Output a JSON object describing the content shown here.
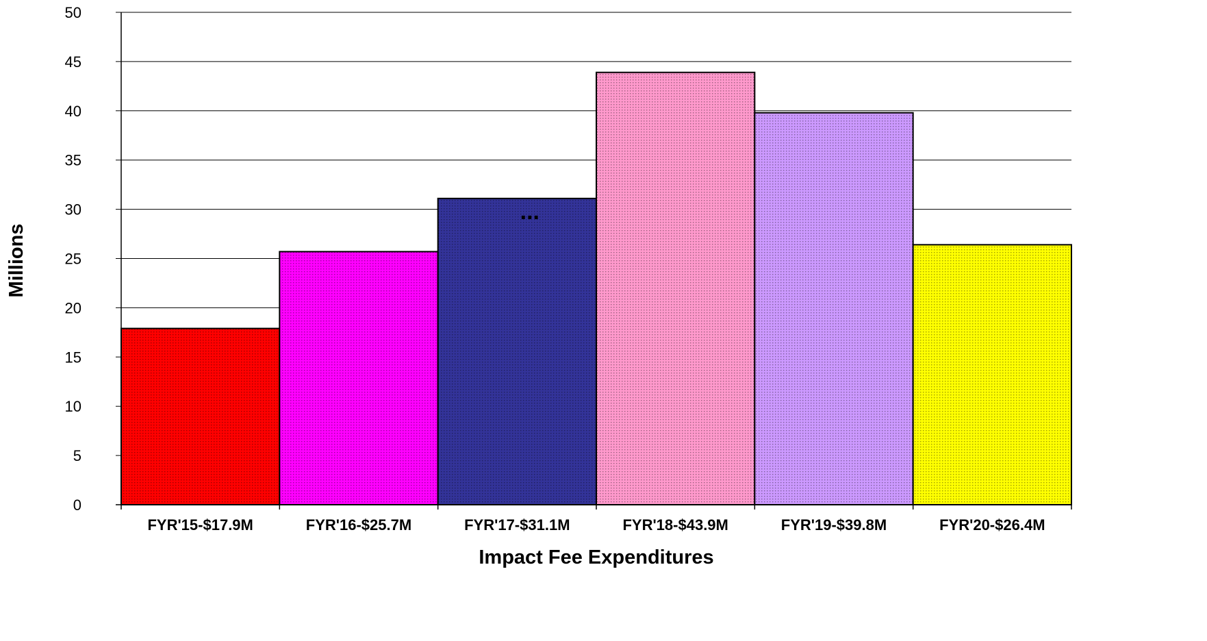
{
  "chart_data": {
    "type": "bar",
    "title": "",
    "xlabel": "Impact Fee Expenditures",
    "ylabel": "Millions",
    "categories": [
      "FYR'15-$17.9M",
      "FYR'16-$25.7M",
      "FYR'17-$31.1M",
      "FYR'18-$43.9M",
      "FYR'19-$39.8M",
      "FYR'20-$26.4M"
    ],
    "values": [
      17.9,
      25.7,
      31.1,
      43.9,
      39.8,
      26.4
    ],
    "colors": [
      "#ff0000",
      "#ff00ff",
      "#333399",
      "#ff99cc",
      "#cc99ff",
      "#ffff00"
    ],
    "ylim": [
      0,
      50
    ],
    "yticks": [
      0,
      5,
      10,
      15,
      20,
      25,
      30,
      35,
      40,
      45,
      50
    ],
    "grid": true,
    "legend": "none",
    "bar_annotation": {
      "bar_index": 2,
      "text": "..."
    }
  }
}
